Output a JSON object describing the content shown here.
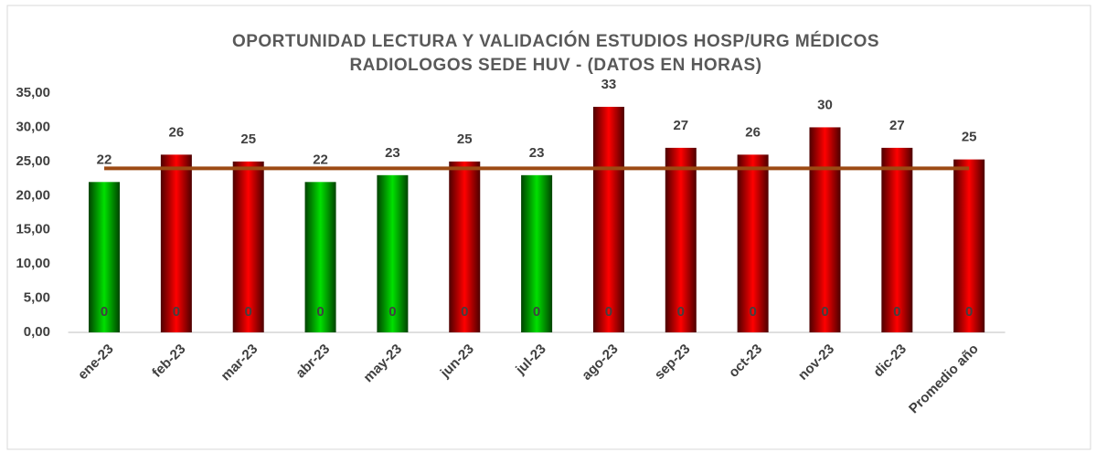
{
  "chart_data": {
    "type": "bar",
    "title": [
      "OPORTUNIDAD LECTURA Y VALIDACIÓN ESTUDIOS HOSP/URG MÉDICOS",
      "RADIOLOGOS SEDE HUV - (DATOS EN HORAS)"
    ],
    "categories": [
      "ene-23",
      "feb-23",
      "mar-23",
      "abr-23",
      "may-23",
      "jun-23",
      "jul-23",
      "ago-23",
      "sep-23",
      "oct-23",
      "nov-23",
      "dic-23",
      "Promedio año"
    ],
    "series": [
      {
        "type": "bar",
        "values": [
          22,
          26,
          25,
          22,
          23,
          25,
          23,
          33,
          27,
          26,
          30,
          27,
          25.3
        ],
        "value_labels": [
          "22",
          "26",
          "25",
          "22",
          "23",
          "25",
          "23",
          "33",
          "27",
          "26",
          "30",
          "27",
          "25"
        ],
        "colors": [
          "#00e000",
          "#ff0000",
          "#ff0000",
          "#00e000",
          "#00e000",
          "#ff0000",
          "#00e000",
          "#ff0000",
          "#ff0000",
          "#ff0000",
          "#ff0000",
          "#ff0000",
          "#ff0000"
        ]
      },
      {
        "type": "bar",
        "values": [
          0,
          0,
          0,
          0,
          0,
          0,
          0,
          0,
          0,
          0,
          0,
          0,
          0
        ],
        "color": "#404040"
      },
      {
        "type": "line",
        "values": [
          24,
          24,
          24,
          24,
          24,
          24,
          24,
          24,
          24,
          24,
          24,
          24,
          24
        ],
        "color": "#9c4a14"
      }
    ],
    "ylim": [
      0,
      35
    ],
    "yticks": [
      {
        "value": 0,
        "label": "0,00"
      },
      {
        "value": 5,
        "label": "5,00"
      },
      {
        "value": 10,
        "label": "10,00"
      },
      {
        "value": 15,
        "label": "15,00"
      },
      {
        "value": 20,
        "label": "20,00"
      },
      {
        "value": 25,
        "label": "25,00"
      },
      {
        "value": 30,
        "label": "30,00"
      },
      {
        "value": 35,
        "label": "35,00"
      }
    ],
    "grid": false
  }
}
